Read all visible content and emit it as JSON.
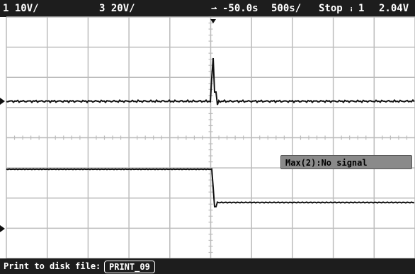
{
  "status_bar": {
    "ch1_scale": "1  10V/",
    "ch3_scale": "3  20V/",
    "time_offset": "-50.0s",
    "time_scale": "500s/",
    "run_state": "Stop",
    "trigger_source": "1",
    "trigger_level": "2.04V"
  },
  "measurement": {
    "label": "Max(2):No signal"
  },
  "bottom_bar": {
    "label": "Print to disk file:",
    "filename": "PRINT_09"
  },
  "colors": {
    "background": "#ffffff",
    "grid": "#bcbcbc",
    "trace": "#111111",
    "bars": "#1d1d1d"
  }
}
